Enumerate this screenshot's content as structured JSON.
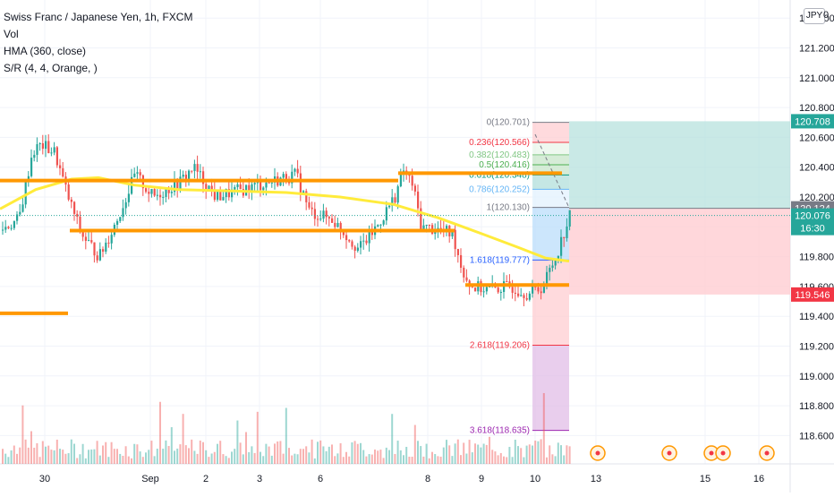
{
  "legend": {
    "title": "Swiss Franc / Japanese Yen, 1h, FXCM",
    "vol": "Vol",
    "hma": "HMA (360, close)",
    "sr": "S/R (4, 4, Orange, )"
  },
  "currency_button": "JPY",
  "axis_top_label": "0",
  "colors": {
    "up": "#26a69a",
    "down": "#ef5350",
    "sr_line": "#ff9800",
    "hma": "#ffeb3b",
    "profit_zone": "#b2dfdb",
    "loss_zone": "#ffcdd2"
  },
  "chart_data": {
    "type": "candlestick",
    "y_ticks": [
      "121.400",
      "121.200",
      "121.000",
      "120.800",
      "120.600",
      "120.400",
      "120.200",
      "120.000",
      "119.800",
      "119.600",
      "119.400",
      "119.200",
      "119.000",
      "118.800",
      "118.600"
    ],
    "x_ticks": [
      "30",
      "Sep",
      "2",
      "3",
      "6",
      "8",
      "9",
      "10",
      "13",
      "15",
      "16"
    ],
    "price_badges": [
      {
        "label": "120.708",
        "color": "#26a69a",
        "value": 120.708
      },
      {
        "label": "120.124",
        "color": "#787b86",
        "value": 120.124
      },
      {
        "label": "120.076",
        "sub": "16:30",
        "color": "#26a69a",
        "value": 120.076
      },
      {
        "label": "119.546",
        "color": "#f23645",
        "value": 119.546
      }
    ],
    "fib_levels": [
      {
        "label": "0(120.701)",
        "value": 120.701,
        "color": "#787b86"
      },
      {
        "label": "0.236(120.566)",
        "value": 120.566,
        "color": "#f23645"
      },
      {
        "label": "0.382(120.483)",
        "value": 120.483,
        "color": "#81c784"
      },
      {
        "label": "0.5(120.416)",
        "value": 120.416,
        "color": "#4caf50"
      },
      {
        "label": "0.618(120.348)",
        "value": 120.348,
        "color": "#089981"
      },
      {
        "label": "0.786(120.252)",
        "value": 120.252,
        "color": "#64b5f6"
      },
      {
        "label": "1(120.130)",
        "value": 120.13,
        "color": "#787b86"
      },
      {
        "label": "1.618(119.777)",
        "value": 119.777,
        "color": "#2962ff"
      },
      {
        "label": "2.618(119.206)",
        "value": 119.206,
        "color": "#f23645"
      },
      {
        "label": "3.618(118.635)",
        "value": 118.635,
        "color": "#9c27b0"
      }
    ],
    "sr_levels": [
      120.31,
      119.97,
      119.61,
      119.42,
      120.35
    ]
  }
}
